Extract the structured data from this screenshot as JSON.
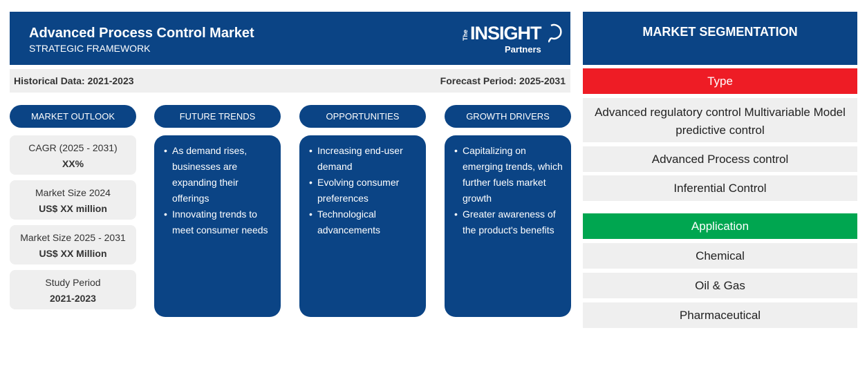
{
  "header": {
    "title": "Advanced Process Control Market",
    "subtitle": "STRATEGIC FRAMEWORK",
    "logo": {
      "the": "The",
      "insight": "INSIGHT",
      "partners": "Partners"
    }
  },
  "periods": {
    "historical": "Historical Data: 2021-2023",
    "forecast": "Forecast Period: 2025-2031"
  },
  "columns": {
    "market_outlook": "MARKET OUTLOOK",
    "future_trends": "FUTURE TRENDS",
    "opportunities": "OPPORTUNITIES",
    "growth_drivers": "GROWTH DRIVERS"
  },
  "outlook": [
    {
      "label": "CAGR (2025 - 2031)",
      "value": "XX%"
    },
    {
      "label": "Market Size 2024",
      "value": "US$ XX million"
    },
    {
      "label": "Market Size 2025 - 2031",
      "value": "US$ XX Million"
    },
    {
      "label": "Study Period",
      "value": "2021-2023"
    }
  ],
  "future_trends": [
    "As demand rises, businesses are expanding their offerings",
    "Innovating trends to meet consumer needs"
  ],
  "opportunities": [
    "Increasing end-user demand",
    "Evolving consumer preferences",
    "Technological advancements"
  ],
  "growth_drivers": [
    "Capitalizing on emerging trends, which further fuels market growth",
    "Greater awareness of the product's benefits"
  ],
  "segmentation": {
    "title": "MARKET SEGMENTATION",
    "type": {
      "title": "Type",
      "color": "#ee1c25",
      "items": [
        "Advanced regulatory control Multivariable Model predictive control",
        "Advanced Process control",
        "Inferential Control"
      ]
    },
    "application": {
      "title": "Application",
      "color": "#00a650",
      "items": [
        "Chemical",
        "Oil & Gas",
        "Pharmaceutical"
      ]
    }
  },
  "colors": {
    "primary": "#0b4485",
    "panel": "#efefef"
  }
}
